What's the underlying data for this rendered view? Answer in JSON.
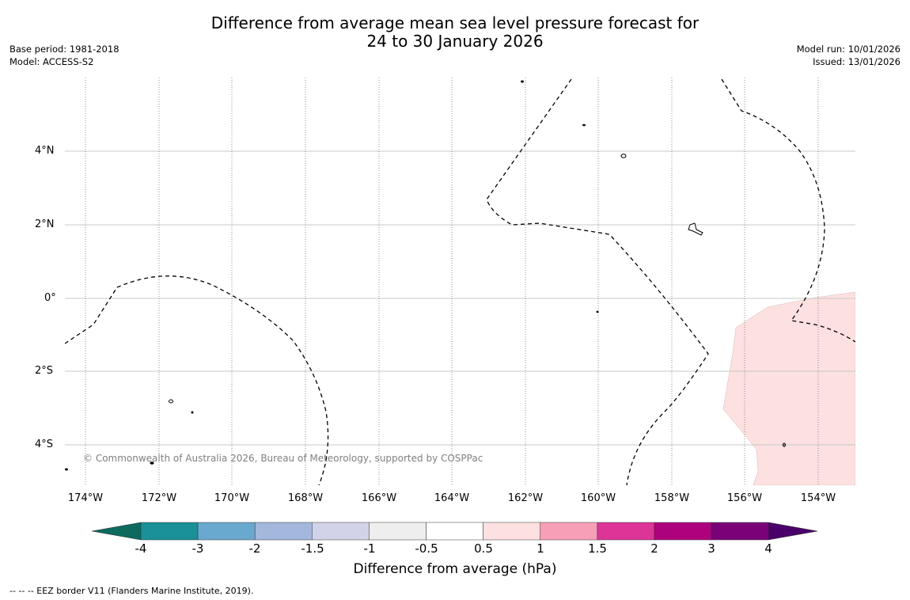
{
  "title": {
    "line1": "Difference from average mean sea level pressure forecast for",
    "line2": "24 to 30 January 2026"
  },
  "meta_left": {
    "base_period": "Base period: 1981-2018",
    "model": "Model: ACCESS-S2"
  },
  "meta_right": {
    "model_run": "Model run: 10/01/2026",
    "issued": "Issued: 13/01/2026"
  },
  "map": {
    "lat_labels": [
      "4°N",
      "2°N",
      "0°",
      "2°S",
      "4°S"
    ],
    "lon_labels": [
      "174°W",
      "172°W",
      "170°W",
      "168°W",
      "166°W",
      "164°W",
      "162°W",
      "160°W",
      "158°W",
      "156°W",
      "154°W"
    ],
    "copyright": "© Commonwealth of Australia 2026, Bureau of Meteorology, supported by COSPPac",
    "anomaly_fill_color": "#fde0e0"
  },
  "colorbar": {
    "tick_labels": [
      "-4",
      "-3",
      "-2",
      "-1.5",
      "-1",
      "-0.5",
      "0.5",
      "1",
      "1.5",
      "2",
      "3",
      "4"
    ],
    "colors": [
      "#0d6b5e",
      "#1a9098",
      "#6aa9cf",
      "#a3b8dc",
      "#d2d2e8",
      "#eeeeee",
      "#ffffff",
      "#fde0e0",
      "#f89fb8",
      "#dd3497",
      "#ae017e",
      "#7a0177",
      "#49006a"
    ],
    "title": "Difference from average (hPa)"
  },
  "footnote": "--  --  -- EEZ border V11 (Flanders Marine Institute, 2019)."
}
